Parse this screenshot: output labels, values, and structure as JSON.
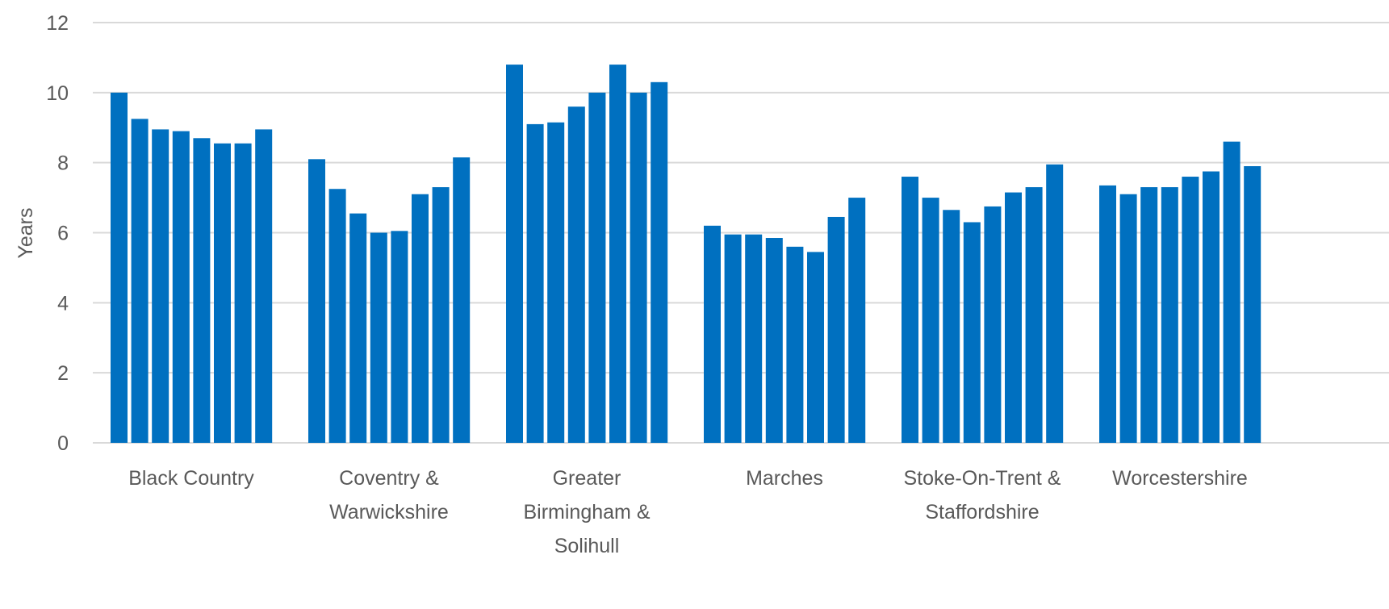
{
  "chart_data": {
    "type": "bar",
    "title": "",
    "xlabel": "",
    "ylabel": "Years",
    "ylim": [
      0,
      12
    ],
    "yticks": [
      0,
      2,
      4,
      6,
      8,
      10,
      12
    ],
    "grid": true,
    "legend": "none",
    "bar_color": "#0070C0",
    "grid_color": "#D9D9D9",
    "text_color": "#595959",
    "categories": [
      "Black Country",
      "Coventry & Warwickshire",
      "Greater Birmingham & Solihull",
      "Marches",
      "Stoke-On-Trent & Staffordshire",
      "Worcestershire"
    ],
    "category_label_lines": [
      [
        "Black Country"
      ],
      [
        "Coventry &",
        "Warwickshire"
      ],
      [
        "Greater",
        "Birmingham &",
        "Solihull"
      ],
      [
        "Marches"
      ],
      [
        "Stoke-On-Trent &",
        "Staffordshire"
      ],
      [
        "Worcestershire"
      ]
    ],
    "values": [
      [
        10.0,
        9.25,
        8.95,
        8.9,
        8.7,
        8.55,
        8.55,
        8.95
      ],
      [
        8.1,
        7.25,
        6.55,
        6.0,
        6.05,
        7.1,
        7.3,
        8.15
      ],
      [
        10.8,
        9.1,
        9.15,
        9.6,
        10.0,
        10.8,
        10.0,
        10.3
      ],
      [
        6.2,
        5.95,
        5.95,
        5.85,
        5.6,
        5.45,
        6.45,
        7.0
      ],
      [
        7.6,
        7.0,
        6.65,
        6.3,
        6.75,
        7.15,
        7.3,
        7.95
      ],
      [
        7.35,
        7.1,
        7.3,
        7.3,
        7.6,
        7.75,
        8.6,
        7.9
      ]
    ]
  }
}
